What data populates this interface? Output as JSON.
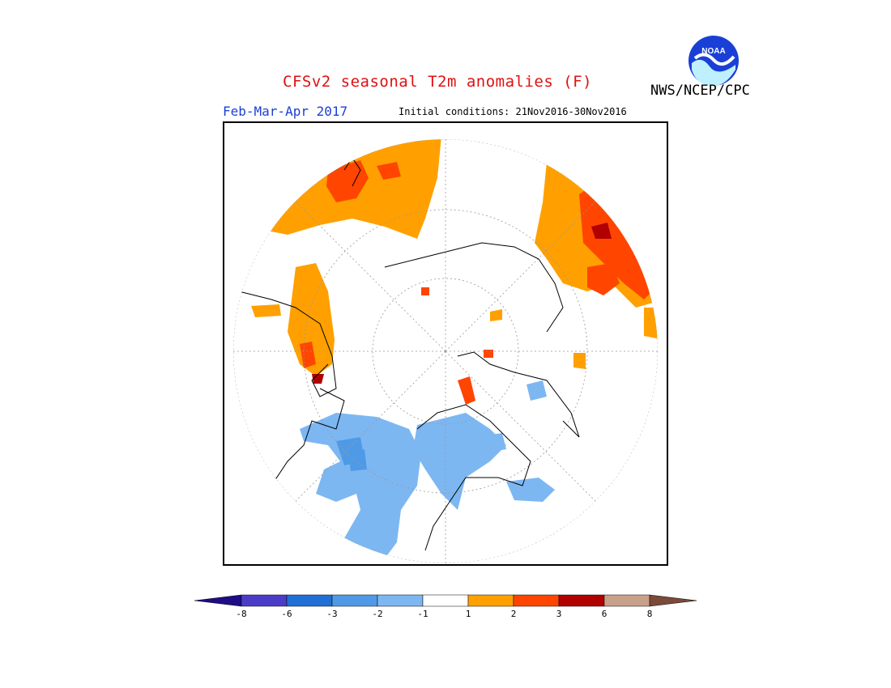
{
  "header": {
    "title": "CFSv2 seasonal T2m anomalies (F)",
    "agency": "NWS/NCEP/CPC",
    "logo_text": "NOAA",
    "season": "Feb-Mar-Apr 2017",
    "initial_conditions": "Initial conditions: 21Nov2016-30Nov2016"
  },
  "map": {
    "projection": "north polar stereographic",
    "variable": "2m temperature anomaly",
    "units": "F"
  },
  "legend": {
    "ticks": [
      "-8",
      "-6",
      "-3",
      "-2",
      "-1",
      "1",
      "2",
      "3",
      "6",
      "8"
    ],
    "bins": [
      {
        "range": "< -8",
        "color": "#1e0c87"
      },
      {
        "range": "-8 to -6",
        "color": "#4b3cc8"
      },
      {
        "range": "-6 to -3",
        "color": "#1f6fd6"
      },
      {
        "range": "-3 to -2",
        "color": "#4f9ae6"
      },
      {
        "range": "-2 to -1",
        "color": "#7db7f2"
      },
      {
        "range": "-1 to 1",
        "color": "#ffffff"
      },
      {
        "range": "1 to 2",
        "color": "#ffa000"
      },
      {
        "range": "2 to 3",
        "color": "#ff4500"
      },
      {
        "range": "3 to 6",
        "color": "#b00000"
      },
      {
        "range": "6 to 8",
        "color": "#c9a08a"
      },
      {
        "range": "> 8",
        "color": "#7a4a3a"
      }
    ]
  }
}
